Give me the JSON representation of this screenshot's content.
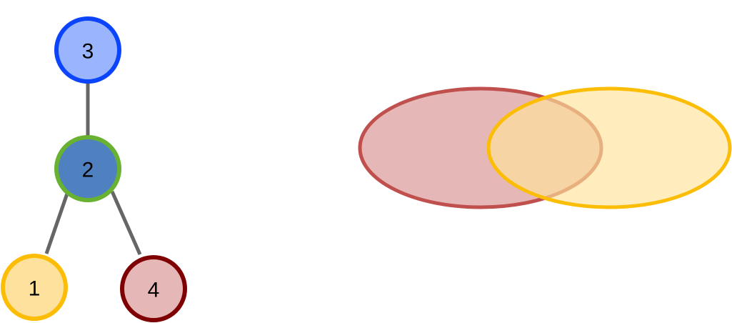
{
  "tree": {
    "edge_color": "#666666",
    "nodes": [
      {
        "id": "3",
        "label": "3",
        "fill": "#9ab5fd",
        "stroke": "#0b44fb"
      },
      {
        "id": "2",
        "label": "2",
        "fill": "#4f80c0",
        "stroke": "#69b131"
      },
      {
        "id": "1",
        "label": "1",
        "fill": "#fde19d",
        "stroke": "#fbbd06"
      },
      {
        "id": "4",
        "label": "4",
        "fill": "#e5b8b7",
        "stroke": "#7f0002"
      }
    ],
    "edges": [
      {
        "from": "3",
        "to": "2"
      },
      {
        "from": "2",
        "to": "1"
      },
      {
        "from": "2",
        "to": "4"
      }
    ]
  },
  "venn": {
    "sets": [
      {
        "name": "left-set",
        "fill": "#e5b8b7",
        "stroke": "#c0504d"
      },
      {
        "name": "right-set",
        "fill": "#ffe49a",
        "stroke": "#fbbd06"
      }
    ]
  }
}
